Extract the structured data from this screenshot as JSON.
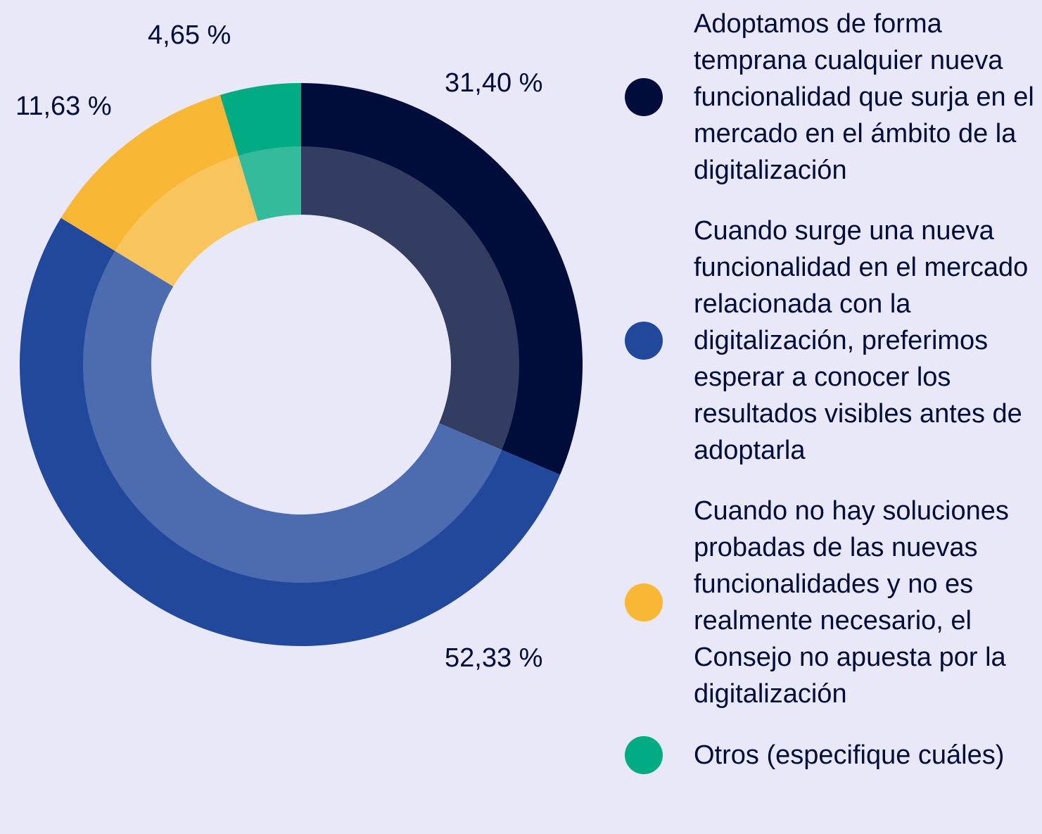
{
  "chart_data": {
    "type": "donut",
    "categories": [
      "Adoptamos de forma temprana cualquier nueva funcionalidad que surja en el mercado en el ámbito de la digitalización",
      "Cuando surge una nueva funcionalidad en el mercado relacionada con la digitalización, preferimos esperar a conocer los resultados visibles antes de adoptarla",
      "Cuando no hay soluciones probadas de las nuevas funcionalidades y no es realmente necesario, el Consejo no apuesta por la digitalización",
      "Otros (especifique cuáles)"
    ],
    "values": [
      31.4,
      52.33,
      11.63,
      4.65
    ],
    "value_labels": [
      "31,40 %",
      "52,33 %",
      "11,63 %",
      "4,65 %"
    ],
    "colors": [
      "#000d3a",
      "#21489b",
      "#f8b734",
      "#00ab84"
    ]
  }
}
